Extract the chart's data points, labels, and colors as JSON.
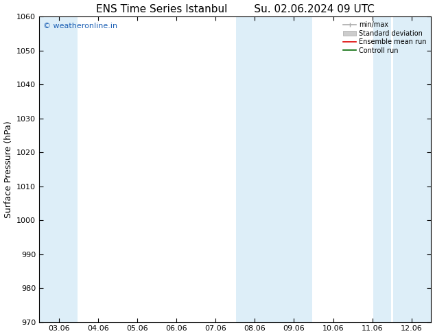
{
  "title_left": "ENS Time Series Istanbul",
  "title_right": "Su. 02.06.2024 09 UTC",
  "ylabel": "Surface Pressure (hPa)",
  "ylim": [
    970,
    1060
  ],
  "yticks": [
    970,
    980,
    990,
    1000,
    1010,
    1020,
    1030,
    1040,
    1050,
    1060
  ],
  "xtick_labels": [
    "03.06",
    "04.06",
    "05.06",
    "06.06",
    "07.06",
    "08.06",
    "09.06",
    "10.06",
    "11.06",
    "12.06"
  ],
  "xtick_positions": [
    0,
    1,
    2,
    3,
    4,
    5,
    6,
    7,
    8,
    9
  ],
  "xlim": [
    -0.5,
    9.5
  ],
  "shaded_bands": [
    {
      "x_start": -0.5,
      "x_end": 0.47,
      "color": "#ddeef8"
    },
    {
      "x_start": 4.53,
      "x_end": 6.47,
      "color": "#ddeef8"
    },
    {
      "x_start": 8.53,
      "x_end": 9.5,
      "color": "#ddeef8"
    },
    {
      "x_start": 8.03,
      "x_end": 8.47,
      "color": "#ddeef8"
    }
  ],
  "background_color": "#ffffff",
  "plot_bg_color": "#ffffff",
  "watermark": "© weatheronline.in",
  "watermark_color": "#1a5fb4",
  "legend_entries": [
    {
      "label": "min/max",
      "color": "#aaaaaa",
      "lw": 1.2,
      "ls": "-"
    },
    {
      "label": "Standard deviation",
      "color": "#cccccc",
      "lw": 6,
      "ls": "-"
    },
    {
      "label": "Ensemble mean run",
      "color": "#dd0000",
      "lw": 1.2,
      "ls": "-"
    },
    {
      "label": "Controll run",
      "color": "#006600",
      "lw": 1.2,
      "ls": "-"
    }
  ],
  "title_fontsize": 11,
  "tick_fontsize": 8,
  "ylabel_fontsize": 9,
  "watermark_fontsize": 8
}
